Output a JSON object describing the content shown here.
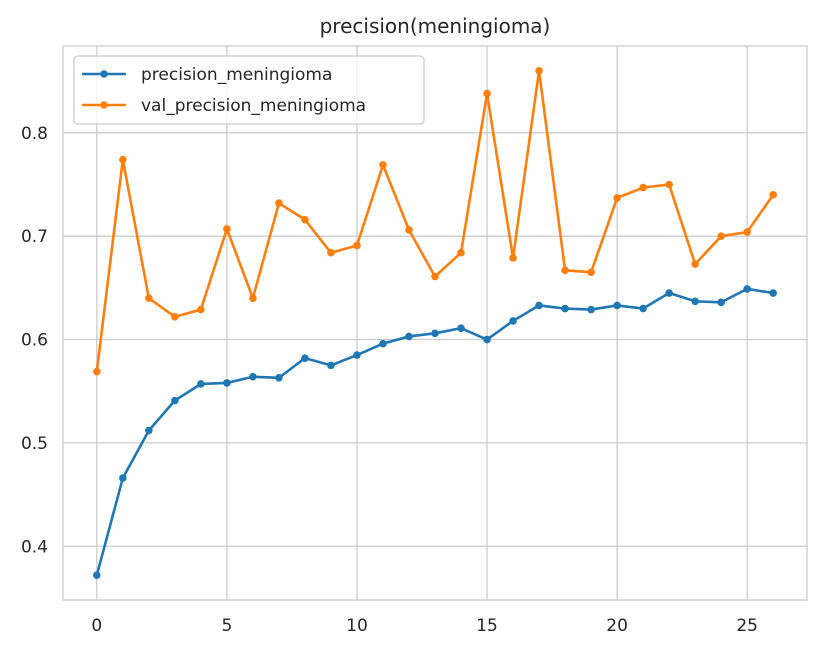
{
  "chart_data": {
    "type": "line",
    "title": "precision(meningioma)",
    "xlabel": "",
    "ylabel": "",
    "xlim": [
      -1.3,
      27.3
    ],
    "ylim": [
      0.348,
      0.884
    ],
    "xticks": [
      0,
      5,
      10,
      15,
      20,
      25
    ],
    "yticks": [
      0.4,
      0.5,
      0.6,
      0.7,
      0.8
    ],
    "grid": true,
    "legend_position": "top-left",
    "x": [
      0,
      1,
      2,
      3,
      4,
      5,
      6,
      7,
      8,
      9,
      10,
      11,
      12,
      13,
      14,
      15,
      16,
      17,
      18,
      19,
      20,
      21,
      22,
      23,
      24,
      25,
      26
    ],
    "series": [
      {
        "name": "precision_meningioma",
        "color": "#1f77b4",
        "values": [
          0.372,
          0.466,
          0.512,
          0.541,
          0.557,
          0.558,
          0.564,
          0.563,
          0.582,
          0.575,
          0.585,
          0.596,
          0.603,
          0.606,
          0.611,
          0.6,
          0.618,
          0.633,
          0.63,
          0.629,
          0.633,
          0.63,
          0.645,
          0.637,
          0.636,
          0.649,
          0.645
        ]
      },
      {
        "name": "val_precision_meningioma",
        "color": "#ff7f0e",
        "values": [
          0.569,
          0.774,
          0.64,
          0.622,
          0.629,
          0.707,
          0.64,
          0.732,
          0.716,
          0.684,
          0.691,
          0.769,
          0.706,
          0.661,
          0.684,
          0.838,
          0.679,
          0.86,
          0.667,
          0.665,
          0.737,
          0.747,
          0.75,
          0.673,
          0.7,
          0.704,
          0.74
        ]
      }
    ]
  }
}
